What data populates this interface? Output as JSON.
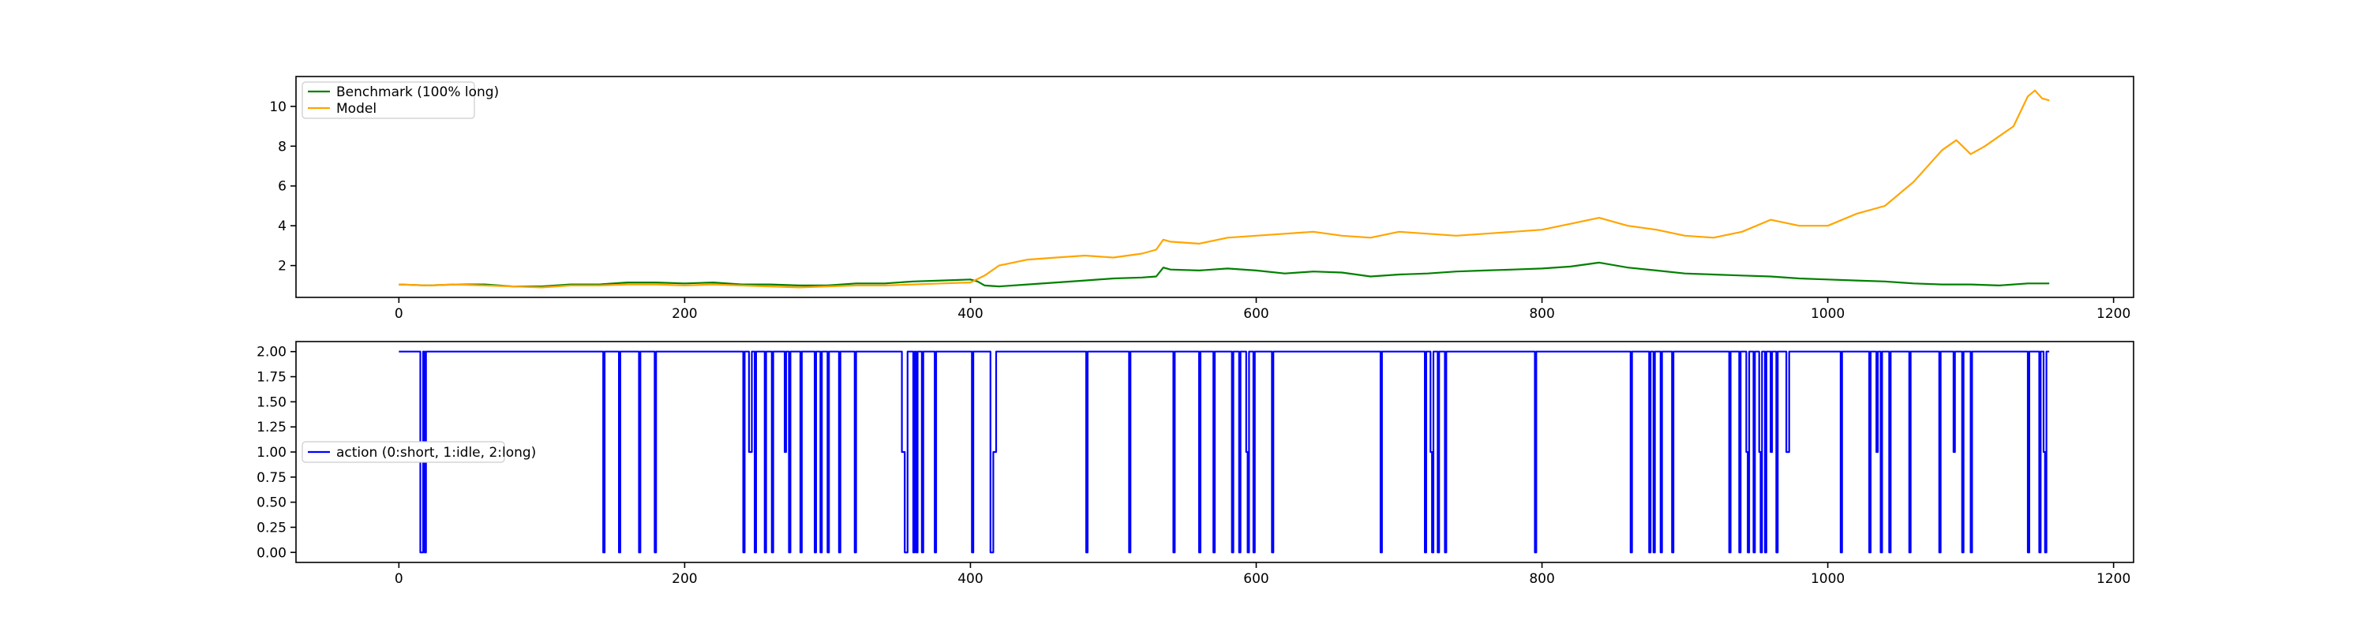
{
  "chart_data": [
    {
      "type": "line",
      "title": "",
      "xlabel": "",
      "ylabel": "",
      "xlim": [
        -72,
        1214
      ],
      "ylim": [
        0.4,
        11.5
      ],
      "xticks": [
        0,
        200,
        400,
        600,
        800,
        1000,
        1200
      ],
      "yticks": [
        2,
        4,
        6,
        8,
        10
      ],
      "legend": "upper-left",
      "grid": false,
      "series": [
        {
          "name": "Benchmark (100% long)",
          "color": "#008000",
          "points": [
            [
              0,
              1.05
            ],
            [
              20,
              1.0
            ],
            [
              40,
              1.05
            ],
            [
              60,
              1.05
            ],
            [
              80,
              0.95
            ],
            [
              100,
              0.95
            ],
            [
              120,
              1.05
            ],
            [
              140,
              1.05
            ],
            [
              160,
              1.15
            ],
            [
              180,
              1.15
            ],
            [
              200,
              1.1
            ],
            [
              220,
              1.15
            ],
            [
              240,
              1.05
            ],
            [
              260,
              1.05
            ],
            [
              280,
              1.0
            ],
            [
              300,
              1.0
            ],
            [
              320,
              1.1
            ],
            [
              340,
              1.1
            ],
            [
              360,
              1.2
            ],
            [
              380,
              1.25
            ],
            [
              400,
              1.3
            ],
            [
              405,
              1.2
            ],
            [
              410,
              1.0
            ],
            [
              420,
              0.95
            ],
            [
              440,
              1.05
            ],
            [
              460,
              1.15
            ],
            [
              480,
              1.25
            ],
            [
              500,
              1.35
            ],
            [
              520,
              1.4
            ],
            [
              530,
              1.45
            ],
            [
              535,
              1.9
            ],
            [
              540,
              1.8
            ],
            [
              560,
              1.75
            ],
            [
              580,
              1.85
            ],
            [
              600,
              1.75
            ],
            [
              620,
              1.6
            ],
            [
              640,
              1.7
            ],
            [
              660,
              1.65
            ],
            [
              680,
              1.45
            ],
            [
              700,
              1.55
            ],
            [
              720,
              1.6
            ],
            [
              740,
              1.7
            ],
            [
              760,
              1.75
            ],
            [
              780,
              1.8
            ],
            [
              800,
              1.85
            ],
            [
              820,
              1.95
            ],
            [
              840,
              2.15
            ],
            [
              860,
              1.9
            ],
            [
              880,
              1.75
            ],
            [
              900,
              1.6
            ],
            [
              920,
              1.55
            ],
            [
              940,
              1.5
            ],
            [
              960,
              1.45
            ],
            [
              980,
              1.35
            ],
            [
              1000,
              1.3
            ],
            [
              1020,
              1.25
            ],
            [
              1040,
              1.2
            ],
            [
              1060,
              1.1
            ],
            [
              1080,
              1.05
            ],
            [
              1100,
              1.05
            ],
            [
              1120,
              1.0
            ],
            [
              1140,
              1.1
            ],
            [
              1155,
              1.1
            ]
          ]
        },
        {
          "name": "Model",
          "color": "#FFA500",
          "points": [
            [
              0,
              1.05
            ],
            [
              20,
              1.0
            ],
            [
              40,
              1.05
            ],
            [
              60,
              1.0
            ],
            [
              80,
              0.95
            ],
            [
              100,
              0.9
            ],
            [
              120,
              1.0
            ],
            [
              140,
              1.0
            ],
            [
              160,
              1.05
            ],
            [
              180,
              1.05
            ],
            [
              200,
              1.0
            ],
            [
              220,
              1.05
            ],
            [
              240,
              1.0
            ],
            [
              260,
              0.95
            ],
            [
              280,
              0.9
            ],
            [
              300,
              0.95
            ],
            [
              320,
              1.0
            ],
            [
              340,
              1.0
            ],
            [
              360,
              1.05
            ],
            [
              380,
              1.1
            ],
            [
              400,
              1.15
            ],
            [
              410,
              1.5
            ],
            [
              420,
              2.0
            ],
            [
              440,
              2.3
            ],
            [
              460,
              2.4
            ],
            [
              480,
              2.5
            ],
            [
              500,
              2.4
            ],
            [
              520,
              2.6
            ],
            [
              530,
              2.8
            ],
            [
              535,
              3.3
            ],
            [
              540,
              3.2
            ],
            [
              560,
              3.1
            ],
            [
              580,
              3.4
            ],
            [
              600,
              3.5
            ],
            [
              620,
              3.6
            ],
            [
              640,
              3.7
            ],
            [
              660,
              3.5
            ],
            [
              680,
              3.4
            ],
            [
              700,
              3.7
            ],
            [
              720,
              3.6
            ],
            [
              740,
              3.5
            ],
            [
              760,
              3.6
            ],
            [
              780,
              3.7
            ],
            [
              800,
              3.8
            ],
            [
              820,
              4.1
            ],
            [
              840,
              4.4
            ],
            [
              860,
              4.0
            ],
            [
              880,
              3.8
            ],
            [
              900,
              3.5
            ],
            [
              920,
              3.4
            ],
            [
              940,
              3.7
            ],
            [
              960,
              4.3
            ],
            [
              980,
              4.0
            ],
            [
              1000,
              4.0
            ],
            [
              1020,
              4.6
            ],
            [
              1040,
              5.0
            ],
            [
              1060,
              6.2
            ],
            [
              1080,
              7.8
            ],
            [
              1090,
              8.3
            ],
            [
              1100,
              7.6
            ],
            [
              1110,
              8.0
            ],
            [
              1120,
              8.5
            ],
            [
              1130,
              9.0
            ],
            [
              1140,
              10.5
            ],
            [
              1145,
              10.8
            ],
            [
              1150,
              10.4
            ],
            [
              1155,
              10.3
            ]
          ]
        }
      ]
    },
    {
      "type": "line",
      "title": "",
      "xlabel": "",
      "ylabel": "",
      "xlim": [
        -72,
        1214
      ],
      "ylim": [
        -0.1,
        2.1
      ],
      "xticks": [
        0,
        200,
        400,
        600,
        800,
        1000,
        1200
      ],
      "yticks": [
        0.0,
        0.25,
        0.5,
        0.75,
        1.0,
        1.25,
        1.5,
        1.75,
        2.0
      ],
      "ytick_labels": [
        "0.00",
        "0.25",
        "0.50",
        "0.75",
        "1.00",
        "1.25",
        "1.50",
        "1.75",
        "2.00"
      ],
      "legend": "center-left",
      "grid": false,
      "series": [
        {
          "name": "action (0:short, 1:idle, 2:long)",
          "color": "#0000FF",
          "drawstyle": "steps",
          "x_start": 0,
          "x_end": 1155,
          "points": [
            [
              0,
              2
            ],
            [
              15,
              0
            ],
            [
              17,
              2
            ],
            [
              18,
              0
            ],
            [
              19,
              2
            ],
            [
              143,
              0
            ],
            [
              144,
              2
            ],
            [
              154,
              0
            ],
            [
              155,
              2
            ],
            [
              168,
              0
            ],
            [
              169,
              2
            ],
            [
              179,
              0
            ],
            [
              180,
              2
            ],
            [
              241,
              0
            ],
            [
              242,
              2
            ],
            [
              245,
              1
            ],
            [
              247,
              2
            ],
            [
              249,
              0
            ],
            [
              250,
              2
            ],
            [
              256,
              0
            ],
            [
              257,
              2
            ],
            [
              261,
              0
            ],
            [
              262,
              2
            ],
            [
              270,
              1
            ],
            [
              271,
              2
            ],
            [
              273,
              0
            ],
            [
              274,
              2
            ],
            [
              281,
              0
            ],
            [
              282,
              2
            ],
            [
              291,
              0
            ],
            [
              292,
              2
            ],
            [
              295,
              0
            ],
            [
              296,
              2
            ],
            [
              300,
              0
            ],
            [
              301,
              2
            ],
            [
              308,
              0
            ],
            [
              309,
              2
            ],
            [
              319,
              0
            ],
            [
              320,
              2
            ],
            [
              352,
              1
            ],
            [
              354,
              0
            ],
            [
              356,
              2
            ],
            [
              360,
              0
            ],
            [
              361,
              2
            ],
            [
              362,
              0
            ],
            [
              363,
              2
            ],
            [
              366,
              0
            ],
            [
              367,
              2
            ],
            [
              375,
              0
            ],
            [
              376,
              2
            ],
            [
              401,
              0
            ],
            [
              402,
              2
            ],
            [
              414,
              0
            ],
            [
              416,
              1
            ],
            [
              418,
              2
            ],
            [
              481,
              0
            ],
            [
              482,
              2
            ],
            [
              511,
              0
            ],
            [
              512,
              2
            ],
            [
              542,
              0
            ],
            [
              543,
              2
            ],
            [
              560,
              0
            ],
            [
              561,
              2
            ],
            [
              570,
              0
            ],
            [
              571,
              2
            ],
            [
              583,
              0
            ],
            [
              584,
              2
            ],
            [
              588,
              0
            ],
            [
              589,
              2
            ],
            [
              593,
              1
            ],
            [
              594,
              0
            ],
            [
              595,
              2
            ],
            [
              598,
              0
            ],
            [
              599,
              2
            ],
            [
              611,
              0
            ],
            [
              612,
              2
            ],
            [
              687,
              0
            ],
            [
              688,
              2
            ],
            [
              718,
              0
            ],
            [
              719,
              2
            ],
            [
              722,
              1
            ],
            [
              723,
              0
            ],
            [
              724,
              2
            ],
            [
              727,
              0
            ],
            [
              728,
              2
            ],
            [
              732,
              0
            ],
            [
              733,
              2
            ],
            [
              795,
              0
            ],
            [
              796,
              2
            ],
            [
              862,
              0
            ],
            [
              863,
              2
            ],
            [
              875,
              0
            ],
            [
              876,
              2
            ],
            [
              878,
              0
            ],
            [
              879,
              2
            ],
            [
              883,
              0
            ],
            [
              884,
              2
            ],
            [
              891,
              0
            ],
            [
              892,
              2
            ],
            [
              931,
              0
            ],
            [
              932,
              2
            ],
            [
              938,
              0
            ],
            [
              939,
              2
            ],
            [
              943,
              1
            ],
            [
              944,
              0
            ],
            [
              945,
              2
            ],
            [
              948,
              0
            ],
            [
              949,
              2
            ],
            [
              952,
              1
            ],
            [
              953,
              0
            ],
            [
              954,
              2
            ],
            [
              956,
              0
            ],
            [
              957,
              2
            ],
            [
              960,
              1
            ],
            [
              961,
              2
            ],
            [
              964,
              0
            ],
            [
              965,
              2
            ],
            [
              971,
              1
            ],
            [
              973,
              2
            ],
            [
              1009,
              0
            ],
            [
              1010,
              2
            ],
            [
              1029,
              0
            ],
            [
              1030,
              2
            ],
            [
              1034,
              1
            ],
            [
              1035,
              2
            ],
            [
              1037,
              0
            ],
            [
              1038,
              2
            ],
            [
              1043,
              0
            ],
            [
              1044,
              2
            ],
            [
              1057,
              0
            ],
            [
              1058,
              2
            ],
            [
              1078,
              0
            ],
            [
              1079,
              2
            ],
            [
              1088,
              1
            ],
            [
              1089,
              2
            ],
            [
              1094,
              0
            ],
            [
              1095,
              2
            ],
            [
              1100,
              0
            ],
            [
              1101,
              2
            ],
            [
              1140,
              0
            ],
            [
              1141,
              2
            ],
            [
              1148,
              0
            ],
            [
              1149,
              2
            ],
            [
              1151,
              1
            ],
            [
              1152,
              0
            ],
            [
              1153,
              2
            ]
          ]
        }
      ]
    }
  ]
}
